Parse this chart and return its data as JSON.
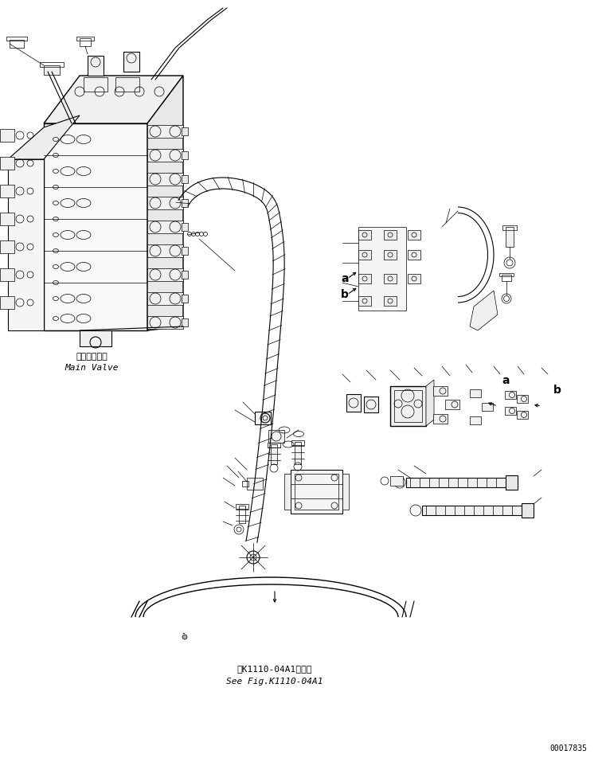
{
  "bg_color": "#ffffff",
  "line_color": "#000000",
  "figure_width": 7.61,
  "figure_height": 9.52,
  "dpi": 100,
  "label_main_valve_jp": "メインバルブ",
  "label_main_valve_en": "Main Valve",
  "label_see_fig_jp": "第K1110-04A1図参照",
  "label_see_fig_en": "See Fig.K1110-04A1",
  "label_a1": "a",
  "label_b1": "b",
  "label_a2": "a",
  "label_b2": "b",
  "doc_number": "00017835",
  "title_fontsize": 8,
  "small_fontsize": 7,
  "doc_fontsize": 7
}
